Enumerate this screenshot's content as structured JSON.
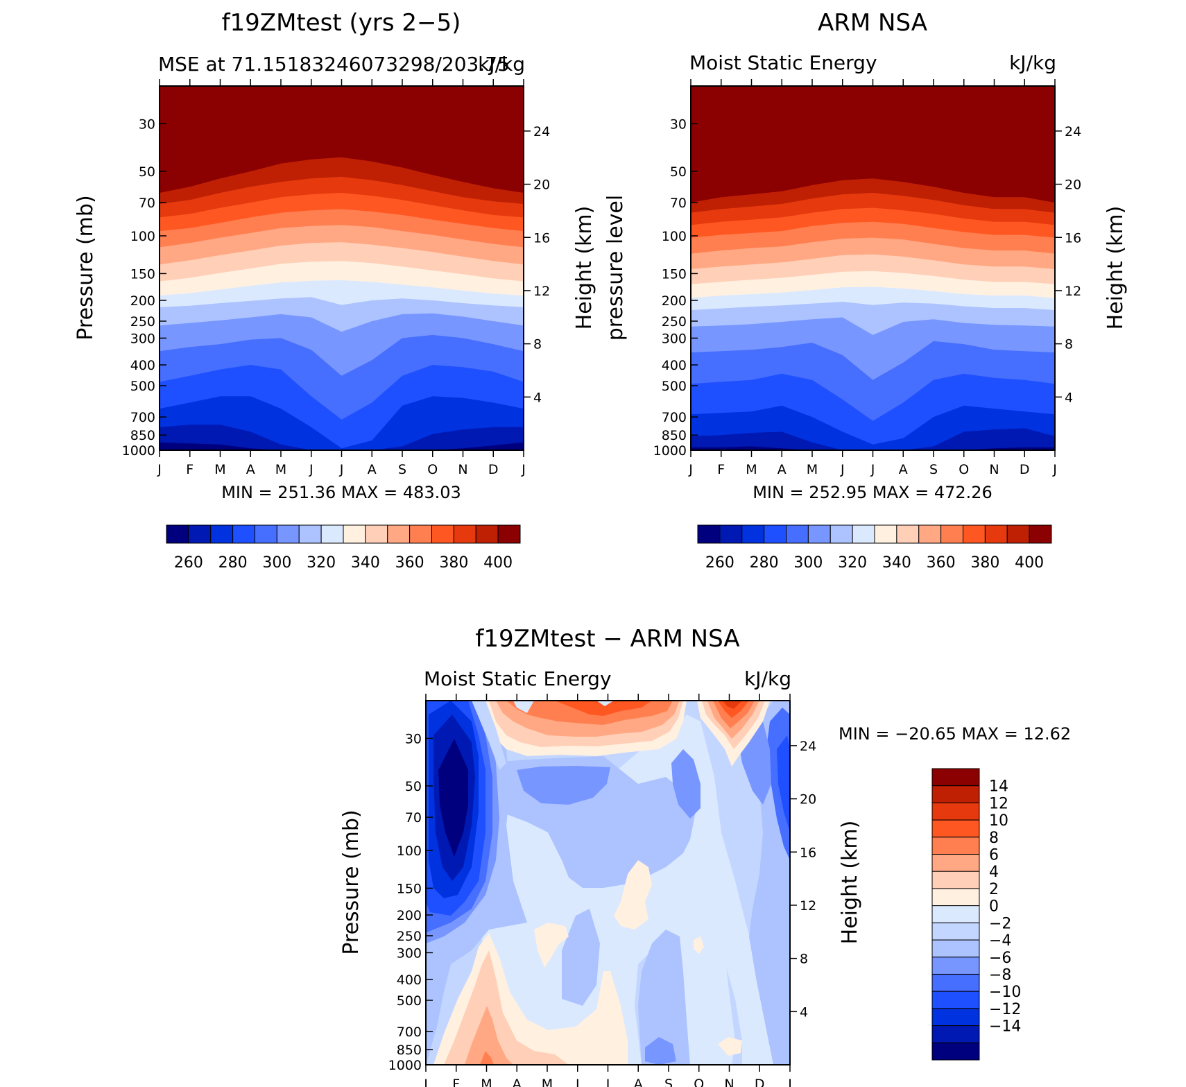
{
  "chart_data": [
    {
      "type": "heatmap",
      "title": "f19ZMtest (yrs 2−5)",
      "subtitle_left": "MSE at 71.15183246073298/203.75",
      "subtitle_right": "kJ/kg",
      "ylabel": "Pressure (mb)",
      "ylabel_right": "Height (km)",
      "x_ticks": [
        "J",
        "F",
        "M",
        "A",
        "M",
        "J",
        "J",
        "A",
        "S",
        "O",
        "N",
        "D",
        "J"
      ],
      "y_ticks": [
        30,
        50,
        70,
        100,
        150,
        200,
        250,
        300,
        400,
        500,
        700,
        850,
        1000
      ],
      "y_right_ticks": [
        24,
        20,
        16,
        12,
        8,
        4
      ],
      "ylim": [
        1000,
        20
      ],
      "minmax": "MIN = 251.36  MAX = 483.03",
      "colorbar_ticks": [
        260,
        280,
        300,
        320,
        340,
        360,
        380,
        400
      ],
      "levels": [
        250,
        260,
        270,
        280,
        290,
        300,
        310,
        320,
        330,
        340,
        350,
        360,
        370,
        380,
        390,
        400,
        410
      ],
      "colors": [
        "#00007f",
        "#0019b3",
        "#0032e0",
        "#1e50ff",
        "#466eff",
        "#7896ff",
        "#adc3ff",
        "#dbe9ff",
        "#fff0e0",
        "#ffcfb8",
        "#ffa883",
        "#ff7f50",
        "#ff5722",
        "#e63a0e",
        "#bf2004",
        "#8b0000"
      ],
      "surface": {
        "x": [
          0,
          1,
          2,
          3,
          4,
          5,
          6,
          7,
          8,
          9,
          10,
          11,
          12
        ],
        "levels_kjkg": [
          [
            400,
            63,
            59,
            54,
            50,
            46,
            44,
            43,
            45,
            48,
            52,
            56,
            60,
            63
          ],
          [
            390,
            71,
            68,
            63,
            59,
            56,
            54,
            53,
            55,
            58,
            62,
            66,
            69,
            71
          ],
          [
            380,
            82,
            79,
            74,
            70,
            66,
            64,
            63,
            65,
            68,
            72,
            76,
            80,
            82
          ],
          [
            370,
            95,
            92,
            87,
            82,
            78,
            76,
            75,
            77,
            80,
            84,
            88,
            92,
            95
          ],
          [
            360,
            113,
            108,
            102,
            97,
            92,
            90,
            89,
            91,
            95,
            99,
            104,
            109,
            113
          ],
          [
            350,
            136,
            130,
            123,
            117,
            111,
            108,
            107,
            110,
            114,
            119,
            125,
            131,
            136
          ],
          [
            340,
            163,
            157,
            149,
            142,
            135,
            132,
            131,
            134,
            139,
            145,
            151,
            158,
            163
          ],
          [
            330,
            190,
            185,
            178,
            171,
            165,
            162,
            161,
            164,
            169,
            174,
            180,
            186,
            190
          ],
          [
            320,
            215,
            212,
            206,
            201,
            196,
            193,
            210,
            200,
            196,
            200,
            206,
            211,
            215
          ],
          [
            310,
            262,
            255,
            248,
            240,
            232,
            240,
            280,
            250,
            232,
            230,
            238,
            250,
            262
          ],
          [
            300,
            345,
            330,
            320,
            305,
            300,
            340,
            450,
            380,
            300,
            290,
            300,
            320,
            345
          ],
          [
            290,
            480,
            450,
            420,
            400,
            420,
            560,
            720,
            600,
            450,
            400,
            410,
            430,
            480
          ],
          [
            280,
            640,
            600,
            560,
            560,
            640,
            780,
            980,
            900,
            620,
            560,
            570,
            600,
            640
          ],
          [
            270,
            780,
            760,
            760,
            820,
            940,
            1000,
            1000,
            1000,
            960,
            840,
            800,
            780,
            780
          ],
          [
            260,
            920,
            930,
            940,
            980,
            1000,
            1000,
            1000,
            1000,
            1000,
            1000,
            980,
            950,
            920
          ]
        ]
      }
    },
    {
      "type": "heatmap",
      "title": "ARM NSA",
      "subtitle_left": "Moist Static Energy",
      "subtitle_right": "kJ/kg",
      "ylabel": "pressure level",
      "ylabel_right": "Height (km)",
      "x_ticks": [
        "J",
        "F",
        "M",
        "A",
        "M",
        "J",
        "J",
        "A",
        "S",
        "O",
        "N",
        "D",
        "J"
      ],
      "y_ticks": [
        30,
        50,
        70,
        100,
        150,
        200,
        250,
        300,
        400,
        500,
        700,
        850,
        1000
      ],
      "y_right_ticks": [
        24,
        20,
        16,
        12,
        8,
        4
      ],
      "ylim": [
        1000,
        20
      ],
      "minmax": "MIN = 252.95  MAX = 472.26",
      "colorbar_ticks": [
        260,
        280,
        300,
        320,
        340,
        360,
        380,
        400
      ],
      "levels": [
        250,
        260,
        270,
        280,
        290,
        300,
        310,
        320,
        330,
        340,
        350,
        360,
        370,
        380,
        390,
        400,
        410
      ],
      "colors": [
        "#00007f",
        "#0019b3",
        "#0032e0",
        "#1e50ff",
        "#466eff",
        "#7896ff",
        "#adc3ff",
        "#dbe9ff",
        "#fff0e0",
        "#ffcfb8",
        "#ffa883",
        "#ff7f50",
        "#ff5722",
        "#e63a0e",
        "#bf2004",
        "#8b0000"
      ],
      "surface": {
        "x": [
          0,
          1,
          2,
          3,
          4,
          5,
          6,
          7,
          8,
          9,
          10,
          11,
          12
        ],
        "levels_kjkg": [
          [
            400,
            70,
            66,
            64,
            62,
            58,
            55,
            54,
            56,
            59,
            63,
            66,
            66,
            70
          ],
          [
            390,
            78,
            75,
            73,
            71,
            67,
            64,
            63,
            65,
            68,
            72,
            75,
            75,
            78
          ],
          [
            380,
            89,
            86,
            84,
            82,
            78,
            75,
            74,
            76,
            79,
            83,
            86,
            86,
            89
          ],
          [
            370,
            102,
            99,
            97,
            95,
            90,
            87,
            86,
            88,
            92,
            96,
            99,
            99,
            102
          ],
          [
            360,
            121,
            117,
            114,
            112,
            107,
            103,
            102,
            104,
            109,
            114,
            117,
            117,
            121
          ],
          [
            350,
            143,
            139,
            136,
            133,
            128,
            123,
            122,
            125,
            130,
            136,
            139,
            139,
            143
          ],
          [
            340,
            168,
            164,
            160,
            157,
            152,
            147,
            146,
            149,
            154,
            160,
            164,
            164,
            168
          ],
          [
            330,
            195,
            190,
            187,
            184,
            179,
            174,
            173,
            176,
            181,
            187,
            190,
            190,
            195
          ],
          [
            320,
            222,
            218,
            214,
            211,
            207,
            203,
            210,
            205,
            207,
            213,
            217,
            217,
            222
          ],
          [
            310,
            265,
            262,
            258,
            252,
            245,
            240,
            290,
            252,
            245,
            255,
            260,
            262,
            265
          ],
          [
            300,
            350,
            345,
            340,
            330,
            315,
            360,
            470,
            390,
            310,
            320,
            340,
            345,
            350
          ],
          [
            290,
            490,
            480,
            470,
            440,
            470,
            580,
            730,
            600,
            470,
            440,
            460,
            470,
            490
          ],
          [
            280,
            680,
            670,
            660,
            620,
            700,
            820,
            940,
            880,
            700,
            620,
            640,
            660,
            680
          ],
          [
            270,
            860,
            850,
            830,
            820,
            920,
            1000,
            1000,
            1000,
            960,
            820,
            800,
            790,
            860
          ],
          [
            260,
            970,
            970,
            960,
            980,
            1000,
            1000,
            1000,
            1000,
            1000,
            1000,
            980,
            970,
            970
          ]
        ]
      }
    },
    {
      "type": "heatmap",
      "title": "f19ZMtest − ARM NSA",
      "subtitle_left": "Moist Static Energy",
      "subtitle_right": "kJ/kg",
      "ylabel": "Pressure (mb)",
      "ylabel_right": "Height (km)",
      "x_ticks": [
        "J",
        "F",
        "M",
        "A",
        "M",
        "J",
        "J",
        "A",
        "S",
        "O",
        "N",
        "D",
        "J"
      ],
      "y_ticks": [
        30,
        50,
        70,
        100,
        150,
        200,
        250,
        300,
        400,
        500,
        700,
        850,
        1000
      ],
      "y_right_ticks": [
        24,
        20,
        16,
        12,
        8,
        4
      ],
      "ylim": [
        1000,
        20
      ],
      "minmax": "MIN = −20.65  MAX =   12.62",
      "colorbar_ticks": [
        "14",
        "12",
        "10",
        "8",
        "6",
        "4",
        "2",
        "0",
        "−2",
        "−4",
        "−6",
        "−8",
        "−10",
        "−12",
        "−14"
      ],
      "colors_top_to_bottom": [
        "#8b0000",
        "#bf2004",
        "#e63a0e",
        "#ff5722",
        "#ff7f50",
        "#ffa883",
        "#ffcfb8",
        "#fff0e0",
        "#dbe9ff",
        "#c3d6ff",
        "#adc3ff",
        "#7896ff",
        "#466eff",
        "#1e50ff",
        "#0032e0",
        "#0019b3",
        "#00007f"
      ]
    }
  ]
}
